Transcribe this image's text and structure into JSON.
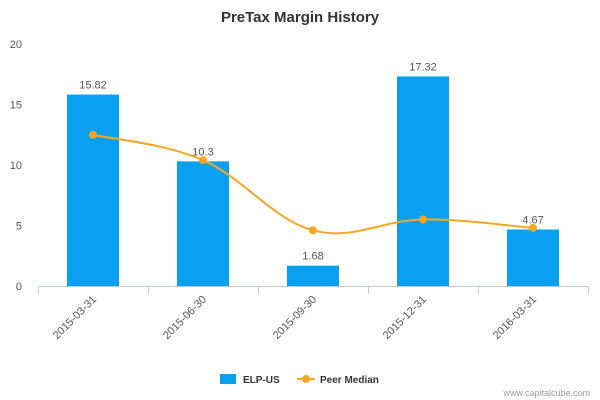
{
  "chart_data": {
    "type": "bar",
    "title": "PreTax Margin History",
    "xlabel": "",
    "ylabel": "",
    "ylim": [
      0,
      20
    ],
    "yticks": [
      0,
      5,
      10,
      15,
      20
    ],
    "categories": [
      "2015-03-31",
      "2015-06-30",
      "2015-09-30",
      "2015-12-31",
      "2016-03-31"
    ],
    "series": [
      {
        "name": "ELP-US",
        "type": "bar",
        "color": "#0aa0f0",
        "values": [
          15.82,
          10.3,
          1.68,
          17.32,
          4.67
        ],
        "labels": [
          "15.82",
          "10.3",
          "1.68",
          "17.32",
          "4.67"
        ]
      },
      {
        "name": "Peer Median",
        "type": "line",
        "color": "#f5a623",
        "values": [
          12.5,
          10.4,
          4.6,
          5.5,
          4.8
        ]
      }
    ],
    "grid": false,
    "legend_position": "bottom-center"
  },
  "credit": "www.capitalcube.com"
}
